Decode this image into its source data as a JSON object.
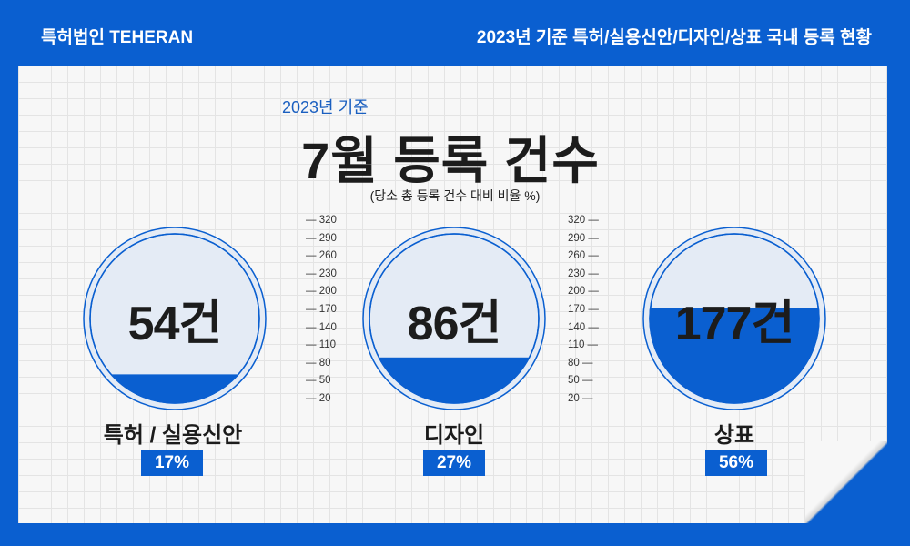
{
  "header": {
    "brand": "특허법인 TEHERAN",
    "headline": "2023년 기준 특허/실용신안/디자인/상표 국내 등록 현황"
  },
  "main": {
    "subtitle": "2023년 기준",
    "title": "7월 등록 건수",
    "note": "(당소 총 등록 건수 대비 비율 %)"
  },
  "colors": {
    "accent": "#0a5fd0",
    "circle_bg": "#e4ebf5",
    "paper": "#f7f7f7"
  },
  "chart_data": {
    "type": "gauge",
    "categories": [
      "특허 / 실용신안",
      "디자인",
      "상표"
    ],
    "counts": [
      54,
      86,
      177
    ],
    "count_labels": [
      "54건",
      "86건",
      "177건"
    ],
    "percent": [
      17,
      27,
      56
    ],
    "percent_labels": [
      "17%",
      "27%",
      "56%"
    ],
    "scale_ticks": [
      "320",
      "290",
      "260",
      "230",
      "200",
      "170",
      "140",
      "110",
      "80",
      "50",
      "20"
    ]
  }
}
